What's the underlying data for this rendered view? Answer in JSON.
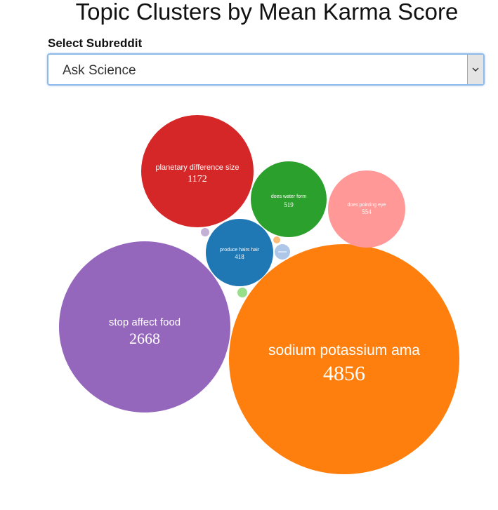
{
  "title": "Topic Clusters by Mean Karma Score",
  "select": {
    "label": "Select Subreddit",
    "value": "Ask Science"
  },
  "chart_data": {
    "type": "bubble",
    "title": "Topic Clusters by Mean Karma Score",
    "bubbles": [
      {
        "label": "sodium potassium ama",
        "value": 4856,
        "color": "#ff7f0e"
      },
      {
        "label": "stop affect food",
        "value": 2668,
        "color": "#9467bd"
      },
      {
        "label": "planetary difference size",
        "value": 1172,
        "color": "#d62728"
      },
      {
        "label": "does pointing eye",
        "value": 554,
        "color": "#ff9896"
      },
      {
        "label": "does water form",
        "value": 519,
        "color": "#2ca02c"
      },
      {
        "label": "produce hairs hair",
        "value": 418,
        "color": "#1f77b4"
      },
      {
        "label": "",
        "value": null,
        "color": "#aec7e8"
      },
      {
        "label": "",
        "value": null,
        "color": "#98df8a"
      },
      {
        "label": "",
        "value": null,
        "color": "#c5b0d5"
      },
      {
        "label": "",
        "value": null,
        "color": "#ffbb78"
      }
    ]
  }
}
